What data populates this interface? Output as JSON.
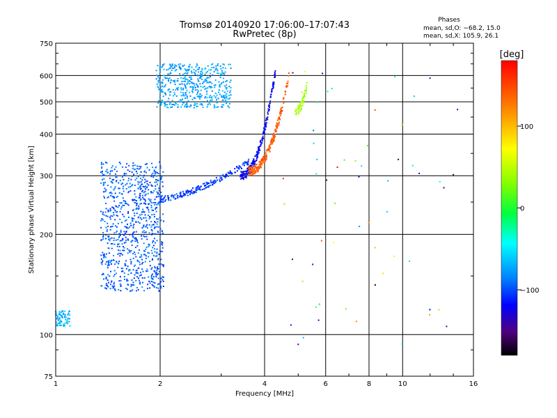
{
  "chart_data": {
    "type": "scatter",
    "title": "Tromsø 20140920 17:06:00–17:07:43",
    "subtitle": "RwPretec (8p)",
    "stats": {
      "heading": "Phases",
      "line_o": "mean, sd,O: −68.2, 15.0",
      "line_x": "mean, sd,X: 105.9, 26.1"
    },
    "xlabel": "Frequency [MHz]",
    "ylabel": "Stationary phase Virtual Height [km]",
    "xscale": "log",
    "yscale": "log",
    "xlim": [
      1,
      16
    ],
    "ylim": [
      75,
      750
    ],
    "xticks": [
      1,
      2,
      4,
      6,
      8,
      10,
      16
    ],
    "xtick_labels": [
      "1",
      "2",
      "4",
      "6",
      "8",
      "10",
      "16"
    ],
    "yticks": [
      75,
      100,
      200,
      300,
      400,
      500,
      600,
      750
    ],
    "ytick_labels": [
      "75",
      "100",
      "200",
      "300",
      "400",
      "500",
      "600",
      "750"
    ],
    "colorbar": {
      "unit": "[deg]",
      "range": [
        -180,
        180
      ],
      "ticks": [
        100,
        0,
        -100
      ],
      "tick_labels": [
        "100",
        "0",
        "−100"
      ]
    },
    "clusters": [
      {
        "name": "low-frequency ionogram body",
        "f_range": [
          1.35,
          2.05
        ],
        "h_range": [
          135,
          330
        ],
        "phase": -95,
        "count": 900
      },
      {
        "name": "E-region trace",
        "f_range": [
          1.0,
          1.1
        ],
        "h_range": [
          106,
          118
        ],
        "phase": -70,
        "count": 80
      },
      {
        "name": "F-region trace (upper)",
        "f_range": [
          1.95,
          3.2
        ],
        "h_range": [
          480,
          650
        ],
        "phase": -75,
        "count": 500
      },
      {
        "name": "F2 O-trace (lower)",
        "f_range": [
          2.0,
          3.6
        ],
        "h_range": [
          255,
          330
        ],
        "phase": -105,
        "count": 200
      },
      {
        "name": "F2 O-trace rising",
        "f_range": [
          3.4,
          4.3
        ],
        "h_range": [
          300,
          620
        ],
        "phase": -120,
        "count": 220
      },
      {
        "name": "F2 X-trace",
        "f_range": [
          3.6,
          4.7
        ],
        "h_range": [
          310,
          600
        ],
        "phase": 140,
        "count": 240
      },
      {
        "name": "F2 X-trace (green)",
        "f_range": [
          4.9,
          5.3
        ],
        "h_range": [
          470,
          560
        ],
        "phase": 40,
        "count": 60
      },
      {
        "name": "sparse scatter",
        "f_range": [
          4.4,
          14.5
        ],
        "h_range": [
          90,
          620
        ],
        "phase": 0,
        "count": 60
      }
    ]
  }
}
